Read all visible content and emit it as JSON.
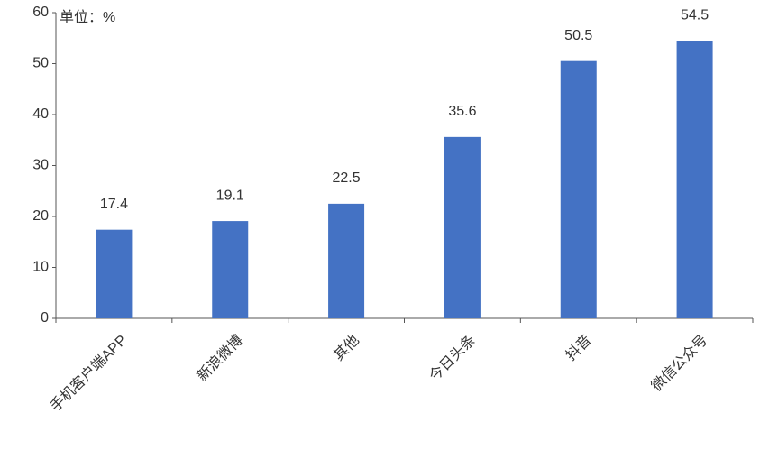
{
  "chart_data": {
    "type": "bar",
    "annotation": "单位：%",
    "categories": [
      "手机客户端APP",
      "新浪微博",
      "其他",
      "今日头条",
      "抖音",
      "微信公众号"
    ],
    "values": [
      17.4,
      19.1,
      22.5,
      35.6,
      50.5,
      54.5
    ],
    "color": "#4472c4",
    "ylim": [
      0,
      60
    ],
    "yticks": [
      0,
      10,
      20,
      30,
      40,
      50,
      60
    ],
    "grid": false
  }
}
